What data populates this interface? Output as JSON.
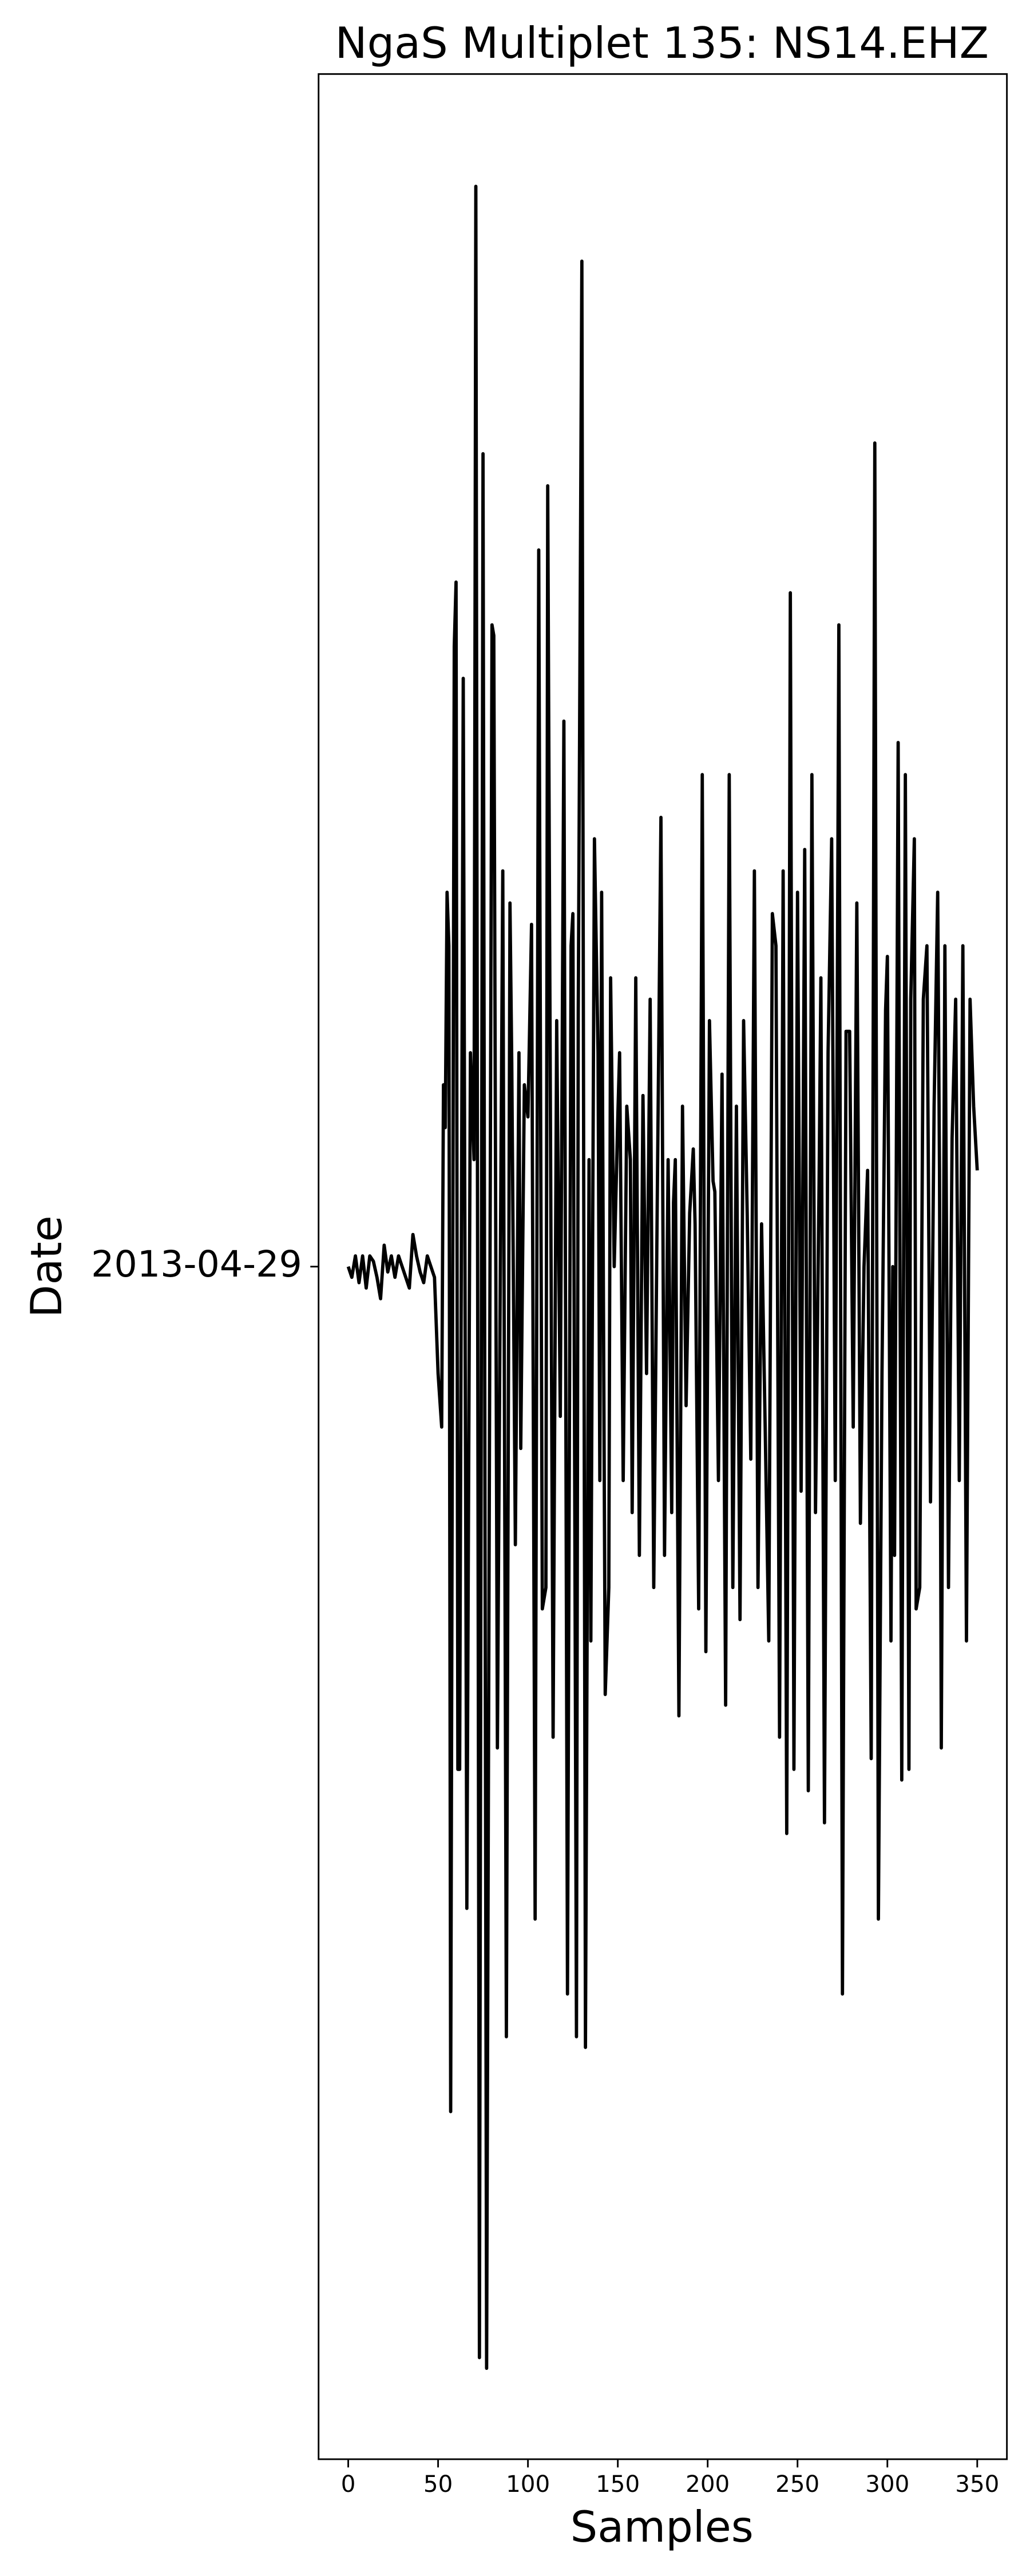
{
  "chart_data": {
    "type": "line",
    "title": "NgaS Multiplet 135: NS14.EHZ",
    "x_label": "Samples",
    "y_label": "Date",
    "color": "#000000",
    "x": [
      0,
      2,
      4,
      6,
      8,
      10,
      12,
      14,
      16,
      18,
      20,
      22,
      24,
      26,
      28,
      30,
      32,
      34,
      36,
      38,
      40,
      42,
      44,
      46,
      48,
      50,
      52,
      53,
      54,
      55,
      56,
      57,
      59,
      60,
      61,
      62,
      64,
      66,
      68,
      70,
      71,
      73,
      75,
      77,
      80,
      81,
      83,
      86,
      88,
      90,
      91,
      93,
      95,
      96,
      98,
      100,
      102,
      104,
      106,
      108,
      110,
      111,
      114,
      116,
      118,
      120,
      122,
      124,
      125,
      127,
      128,
      130,
      132,
      134,
      135,
      137,
      139,
      140,
      141,
      143,
      145,
      146,
      148,
      150,
      151,
      153,
      155,
      157,
      158,
      160,
      162,
      164,
      166,
      168,
      170,
      172,
      174,
      176,
      178,
      180,
      181,
      182,
      184,
      186,
      188,
      190,
      192,
      193,
      195,
      197,
      199,
      201,
      203,
      204,
      206,
      208,
      210,
      212,
      214,
      216,
      218,
      220,
      222,
      224,
      226,
      228,
      230,
      232,
      234,
      236,
      238,
      240,
      242,
      244,
      245,
      246,
      248,
      250,
      252,
      254,
      256,
      258,
      260,
      262,
      263,
      265,
      267,
      269,
      271,
      273,
      275,
      277,
      279,
      281,
      283,
      285,
      287,
      289,
      291,
      293,
      295,
      297,
      299,
      300,
      302,
      303,
      304,
      306,
      308,
      310,
      312,
      313,
      315,
      316,
      318,
      320,
      322,
      324,
      326,
      328,
      329,
      330,
      332,
      334,
      336,
      338,
      340,
      342,
      344,
      346,
      348,
      350
    ],
    "values": [
      0,
      -0.01,
      0.01,
      -0.015,
      0.01,
      -0.02,
      0.01,
      0.005,
      -0.01,
      -0.03,
      0.02,
      -0.005,
      0.01,
      -0.01,
      0.01,
      0,
      -0.01,
      -0.02,
      0.03,
      0.01,
      -0.005,
      -0.015,
      0.01,
      0,
      -0.01,
      -0.1,
      -0.15,
      0.17,
      0.13,
      0.35,
      0.3,
      -0.79,
      0.58,
      0.64,
      -0.47,
      -0.47,
      0.55,
      -0.6,
      0.2,
      0.1,
      1.01,
      -1.02,
      0.76,
      -1.03,
      0.6,
      0.59,
      -0.45,
      0.37,
      -0.72,
      0.34,
      0.19,
      -0.26,
      0.2,
      -0.17,
      0.17,
      0.14,
      0.32,
      -0.61,
      0.67,
      -0.32,
      -0.3,
      0.73,
      -0.44,
      0.23,
      -0.14,
      0.51,
      -0.68,
      0.3,
      0.33,
      -0.72,
      0.24,
      0.94,
      -0.73,
      0.1,
      -0.35,
      0.4,
      0.2,
      -0.2,
      0.35,
      -0.4,
      -0.3,
      0.27,
      0,
      0.14,
      0.2,
      -0.2,
      0.15,
      0.1,
      -0.23,
      0.27,
      -0.27,
      0.16,
      -0.1,
      0.25,
      -0.3,
      0.07,
      0.42,
      -0.27,
      0.1,
      -0.23,
      0.06,
      0.1,
      -0.42,
      0.15,
      -0.13,
      0.05,
      0.11,
      0.04,
      -0.32,
      0.46,
      -0.36,
      0.23,
      0.08,
      0.07,
      -0.2,
      0.18,
      -0.41,
      0.46,
      -0.3,
      0.15,
      -0.33,
      0.23,
      0.05,
      -0.18,
      0.37,
      -0.3,
      0.04,
      -0.15,
      -0.35,
      0.33,
      0.3,
      -0.44,
      0.37,
      -0.53,
      0,
      0.63,
      -0.47,
      0.35,
      -0.21,
      0.39,
      -0.49,
      0.46,
      -0.23,
      0.08,
      0.27,
      -0.52,
      0.2,
      0.4,
      -0.2,
      0.6,
      -0.68,
      0.22,
      0.22,
      -0.15,
      0.34,
      -0.24,
      0,
      0.09,
      -0.46,
      0.77,
      -0.61,
      -0.1,
      0.24,
      0.29,
      -0.35,
      0,
      -0.27,
      0.49,
      -0.48,
      0.46,
      -0.47,
      0.25,
      0.4,
      -0.32,
      -0.3,
      0.25,
      0.3,
      -0.22,
      0.15,
      0.35,
      0.09,
      -0.45,
      0.3,
      -0.3,
      0.12,
      0.25,
      -0.2,
      0.3,
      -0.35,
      0.25,
      0.15,
      0.09
    ],
    "xlim": [
      -16.5,
      366.5
    ],
    "ylim": [
      -1.115,
      1.115
    ],
    "xticks": [
      0,
      50,
      100,
      150,
      200,
      250,
      300,
      350
    ],
    "yticks": [
      {
        "value": 0,
        "label": "2013-04-29"
      }
    ]
  }
}
